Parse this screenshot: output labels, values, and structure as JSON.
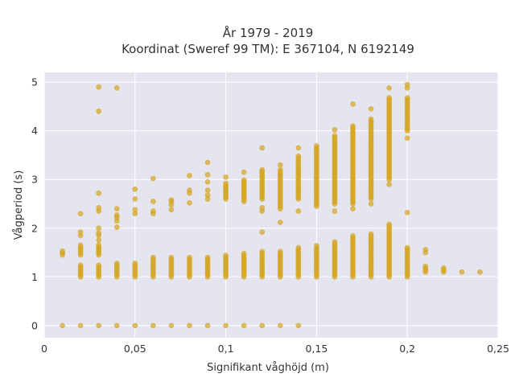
{
  "chart_data": {
    "type": "scatter",
    "title": "År 1979 - 2019",
    "subtitle": "Koordinat (Sweref 99 TM): E 367104, N 6192149",
    "xlabel": "Signifikant våghöjd (m)",
    "ylabel": "Vågperiod (s)",
    "xlim": [
      0,
      0.25
    ],
    "ylim": [
      -0.25,
      5.2
    ],
    "x_ticks": [
      0,
      0.05,
      0.1,
      0.15,
      0.2,
      0.25
    ],
    "x_tick_labels": [
      "0",
      "0,05",
      "0,1",
      "0,15",
      "0,2",
      "0,25"
    ],
    "y_ticks": [
      0,
      1,
      2,
      3,
      4,
      5
    ],
    "y_tick_labels": [
      "0",
      "1",
      "2",
      "3",
      "4",
      "5"
    ],
    "grid": true,
    "plot_background": "#e5e5f0",
    "marker_color": "#d4a520",
    "columns": [
      {
        "x": 0.01,
        "zero": true,
        "ranges": [
          [
            1.45,
            1.55
          ]
        ],
        "points": []
      },
      {
        "x": 0.02,
        "zero": true,
        "ranges": [
          [
            1.0,
            1.25
          ],
          [
            1.45,
            1.65
          ]
        ],
        "points": [
          1.85,
          1.92,
          2.3
        ]
      },
      {
        "x": 0.03,
        "zero": true,
        "ranges": [
          [
            1.0,
            1.25
          ],
          [
            1.45,
            1.65
          ]
        ],
        "points": [
          1.75,
          1.85,
          1.9,
          2.0,
          2.35,
          2.42,
          2.72,
          4.4,
          4.9
        ]
      },
      {
        "x": 0.04,
        "zero": true,
        "ranges": [
          [
            1.0,
            1.3
          ]
        ],
        "points": [
          2.02,
          2.15,
          2.22,
          2.27,
          2.4,
          4.88
        ]
      },
      {
        "x": 0.05,
        "zero": true,
        "ranges": [
          [
            1.0,
            1.3
          ]
        ],
        "points": [
          2.3,
          2.38,
          2.6,
          2.8
        ]
      },
      {
        "x": 0.06,
        "zero": true,
        "ranges": [
          [
            1.0,
            1.4
          ]
        ],
        "points": [
          2.3,
          2.35,
          2.55,
          3.02
        ]
      },
      {
        "x": 0.07,
        "zero": true,
        "ranges": [
          [
            1.0,
            1.42
          ]
        ],
        "points": [
          2.38,
          2.48,
          2.55,
          2.58
        ]
      },
      {
        "x": 0.08,
        "zero": true,
        "ranges": [
          [
            1.0,
            1.42
          ]
        ],
        "points": [
          2.52,
          2.72,
          2.78,
          3.08
        ]
      },
      {
        "x": 0.09,
        "zero": true,
        "ranges": [
          [
            1.0,
            1.42
          ]
        ],
        "points": [
          2.6,
          2.68,
          2.78,
          2.95,
          3.1,
          3.35
        ]
      },
      {
        "x": 0.1,
        "zero": true,
        "ranges": [
          [
            1.0,
            1.45
          ],
          [
            2.6,
            2.95
          ]
        ],
        "points": [
          3.05
        ]
      },
      {
        "x": 0.11,
        "zero": true,
        "ranges": [
          [
            1.0,
            1.5
          ],
          [
            2.55,
            3.0
          ]
        ],
        "points": [
          3.15
        ]
      },
      {
        "x": 0.12,
        "zero": true,
        "ranges": [
          [
            1.0,
            1.52
          ],
          [
            2.6,
            3.2
          ]
        ],
        "points": [
          1.92,
          2.35,
          2.42,
          3.65
        ]
      },
      {
        "x": 0.13,
        "zero": true,
        "ranges": [
          [
            1.0,
            1.55
          ],
          [
            2.4,
            3.2
          ]
        ],
        "points": [
          2.12,
          3.3
        ]
      },
      {
        "x": 0.14,
        "zero": true,
        "ranges": [
          [
            1.0,
            1.6
          ],
          [
            2.6,
            3.5
          ]
        ],
        "points": [
          2.35,
          3.65
        ]
      },
      {
        "x": 0.15,
        "zero": false,
        "ranges": [
          [
            1.0,
            1.65
          ],
          [
            2.45,
            3.7
          ]
        ],
        "points": []
      },
      {
        "x": 0.16,
        "zero": false,
        "ranges": [
          [
            1.0,
            1.72
          ],
          [
            2.5,
            3.9
          ]
        ],
        "points": [
          2.35,
          4.02
        ]
      },
      {
        "x": 0.17,
        "zero": false,
        "ranges": [
          [
            1.0,
            1.85
          ],
          [
            2.5,
            4.1
          ]
        ],
        "points": [
          2.4,
          4.55
        ]
      },
      {
        "x": 0.18,
        "zero": false,
        "ranges": [
          [
            1.0,
            1.9
          ],
          [
            2.6,
            4.25
          ]
        ],
        "points": [
          2.5,
          4.45
        ]
      },
      {
        "x": 0.19,
        "zero": false,
        "ranges": [
          [
            1.0,
            2.08
          ],
          [
            3.0,
            4.7
          ]
        ],
        "points": [
          2.9,
          4.88
        ]
      },
      {
        "x": 0.2,
        "zero": false,
        "ranges": [
          [
            1.0,
            1.6
          ],
          [
            4.0,
            4.7
          ]
        ],
        "points": [
          2.32,
          3.85,
          4.88,
          4.95
        ]
      },
      {
        "x": 0.21,
        "zero": false,
        "ranges": [
          [
            1.1,
            1.22
          ]
        ],
        "points": [
          1.5,
          1.56
        ]
      },
      {
        "x": 0.22,
        "zero": false,
        "ranges": [
          [
            1.1,
            1.18
          ]
        ],
        "points": []
      },
      {
        "x": 0.23,
        "zero": false,
        "ranges": [],
        "points": [
          1.1
        ]
      },
      {
        "x": 0.24,
        "zero": false,
        "ranges": [],
        "points": [
          1.1
        ]
      }
    ]
  }
}
